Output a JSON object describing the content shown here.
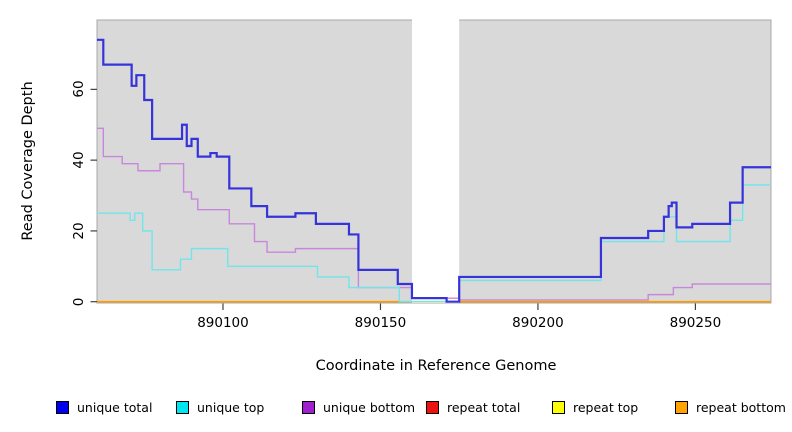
{
  "figure": {
    "background": "#ffffff",
    "panel_background": "#d9d9d9",
    "panel_border_color": "#a8a8a8",
    "tick_color": "#404040"
  },
  "chart_data": {
    "type": "line",
    "subtype": "step",
    "title": "",
    "xlabel": "Coordinate in Reference Genome",
    "ylabel": "Read Coverage Depth",
    "xlim": [
      890060,
      890274
    ],
    "ylim": [
      0,
      79.6
    ],
    "grid": false,
    "legend_position": "bottom",
    "x_ticks": [
      890100,
      890150,
      890200,
      890250
    ],
    "y_ticks": [
      0,
      20,
      40,
      60
    ],
    "x_tick_labels": [
      "890100",
      "890150",
      "890200",
      "890250"
    ],
    "y_tick_labels": [
      "0",
      "20",
      "40",
      "60"
    ],
    "masked_region": {
      "x_start": 890160,
      "x_end": 890175,
      "color": "#ffffff"
    },
    "draw_order": [
      3,
      4,
      5,
      2,
      1,
      0
    ],
    "series": [
      {
        "name": "unique total",
        "color": "#3534DB",
        "legend_color": "#0000EE",
        "width": 2.2,
        "steps": [
          [
            890060,
            74
          ],
          [
            890062,
            67
          ],
          [
            890071,
            61
          ],
          [
            890072.5,
            64
          ],
          [
            890075,
            57
          ],
          [
            890077.5,
            46
          ],
          [
            890087,
            50
          ],
          [
            890088.5,
            44
          ],
          [
            890090,
            46
          ],
          [
            890092,
            41
          ],
          [
            890096,
            42
          ],
          [
            890098,
            41
          ],
          [
            890102,
            32
          ],
          [
            890109,
            27
          ],
          [
            890114,
            24
          ],
          [
            890123,
            25
          ],
          [
            890129.5,
            22
          ],
          [
            890140,
            19
          ],
          [
            890143,
            9
          ],
          [
            890155.5,
            5
          ],
          [
            890160,
            1
          ],
          [
            890171,
            0
          ],
          [
            890175,
            7
          ],
          [
            890220,
            18
          ],
          [
            890235,
            20
          ],
          [
            890240,
            24
          ],
          [
            890241.5,
            27
          ],
          [
            890242.5,
            28
          ],
          [
            890244,
            21
          ],
          [
            890249,
            22
          ],
          [
            890261,
            28
          ],
          [
            890265,
            38
          ]
        ]
      },
      {
        "name": "unique top",
        "color": "#70E6EC",
        "legend_color": "#00E6F0",
        "width": 1.4,
        "steps": [
          [
            890060,
            25
          ],
          [
            890070.5,
            23
          ],
          [
            890072,
            25
          ],
          [
            890074.5,
            20
          ],
          [
            890077.5,
            9
          ],
          [
            890086.5,
            12
          ],
          [
            890090,
            15
          ],
          [
            890101.5,
            10
          ],
          [
            890130,
            7
          ],
          [
            890140,
            4
          ],
          [
            890156,
            0
          ],
          [
            890175,
            6
          ],
          [
            890220,
            17
          ],
          [
            890240,
            24
          ],
          [
            890244,
            17
          ],
          [
            890261,
            23
          ],
          [
            890265,
            33
          ]
        ]
      },
      {
        "name": "unique bottom",
        "color": "#C787DC",
        "legend_color": "#A020D0",
        "width": 1.4,
        "steps": [
          [
            890060,
            49
          ],
          [
            890062,
            41
          ],
          [
            890068,
            39
          ],
          [
            890073,
            37
          ],
          [
            890080,
            39
          ],
          [
            890087.5,
            31
          ],
          [
            890090,
            29
          ],
          [
            890092,
            26
          ],
          [
            890102,
            22
          ],
          [
            890110,
            17
          ],
          [
            890114,
            14
          ],
          [
            890123,
            15
          ],
          [
            890143,
            4
          ],
          [
            890160,
            1
          ],
          [
            890175,
            0.5
          ],
          [
            890235,
            2
          ],
          [
            890243,
            4
          ],
          [
            890249,
            5
          ]
        ]
      },
      {
        "name": "repeat total",
        "color": "#CC2222",
        "legend_color": "#EE1111",
        "width": 1.2,
        "steps": [
          [
            890060,
            0
          ]
        ]
      },
      {
        "name": "repeat top",
        "color": "#F2F200",
        "legend_color": "#FFFF00",
        "width": 1.2,
        "steps": [
          [
            890060,
            0
          ]
        ]
      },
      {
        "name": "repeat bottom",
        "color": "#FF9D00",
        "legend_color": "#FFA300",
        "width": 1.7,
        "steps": [
          [
            890060,
            0
          ]
        ]
      }
    ]
  },
  "legend": {
    "items": [
      {
        "label": "unique total",
        "color": "#0000EE"
      },
      {
        "label": "unique top",
        "color": "#00E6F0"
      },
      {
        "label": "unique bottom",
        "color": "#A020D0"
      },
      {
        "label": "repeat total",
        "color": "#EE1111"
      },
      {
        "label": "repeat top",
        "color": "#FFFF00"
      },
      {
        "label": "repeat bottom",
        "color": "#FFA300"
      }
    ]
  }
}
